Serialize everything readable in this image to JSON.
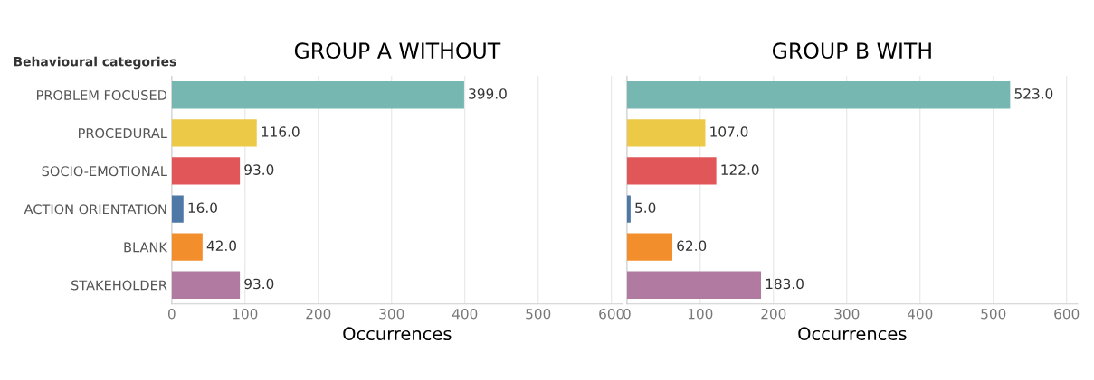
{
  "chart_data": [
    {
      "type": "bar",
      "orientation": "horizontal",
      "title": "GROUP A WITHOUT",
      "xlabel": "Occurrences",
      "ylabel": "Behavioural categories",
      "categories": [
        "PROBLEM FOCUSED",
        "PROCEDURAL",
        "SOCIO-EMOTIONAL",
        "ACTION ORIENTATION",
        "BLANK",
        "STAKEHOLDER"
      ],
      "values": [
        399,
        116,
        93,
        16,
        42,
        93
      ],
      "value_labels": [
        "399.0",
        "116.0",
        "93.0",
        "16.0",
        "42.0",
        "93.0"
      ],
      "colors": [
        "#76b7b2",
        "#edc948",
        "#e15759",
        "#4e79a7",
        "#f28e2b",
        "#b07aa1"
      ],
      "xlim": [
        0,
        615
      ],
      "xticks": [
        0,
        100,
        200,
        300,
        400,
        500,
        600
      ],
      "grid": "x"
    },
    {
      "type": "bar",
      "orientation": "horizontal",
      "title": "GROUP B WITH",
      "xlabel": "Occurrences",
      "categories": [
        null,
        null,
        null,
        null,
        null,
        null
      ],
      "values": [
        523,
        107,
        122,
        5,
        62,
        183
      ],
      "value_labels": [
        "523.0",
        "107.0",
        "122.0",
        "5.0",
        "62.0",
        "183.0"
      ],
      "colors": [
        "#76b7b2",
        "#edc948",
        "#e15759",
        "#4e79a7",
        "#f28e2b",
        "#b07aa1"
      ],
      "xlim": [
        0,
        615
      ],
      "xticks": [
        0,
        100,
        200,
        300,
        400,
        500,
        600
      ],
      "grid": "x",
      "tick_labels": "x"
    }
  ]
}
